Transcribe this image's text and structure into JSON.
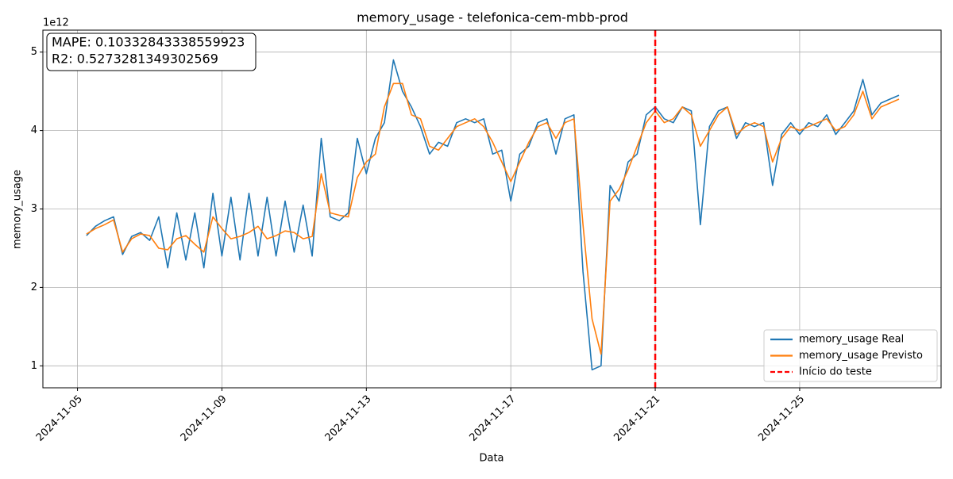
{
  "chart_data": {
    "type": "line",
    "title": "memory_usage - telefonica-cem-mbb-prod",
    "x_label": "Data",
    "y_label": "memory_usage",
    "y_offset_label": "1e12",
    "textbox": [
      "MAPE: 0.10332843338559923",
      "R2: 0.5273281349302569"
    ],
    "grid": true,
    "legend": "lower right",
    "xlim": [
      "2024-11-04 01:00",
      "2024-11-28 22:00"
    ],
    "xticks": [
      "2024-11-05",
      "2024-11-09",
      "2024-11-13",
      "2024-11-17",
      "2024-11-21",
      "2024-11-25"
    ],
    "ylim": [
      0.72,
      5.28
    ],
    "yticks": [
      1,
      2,
      3,
      4,
      5
    ],
    "vline": {
      "x": "2024-11-21",
      "label": "Início do teste",
      "color": "#ff0000"
    },
    "x": [
      "2024-11-05 06:00",
      "2024-11-05 12:00",
      "2024-11-05 18:00",
      "2024-11-06 00:00",
      "2024-11-06 06:00",
      "2024-11-06 12:00",
      "2024-11-06 18:00",
      "2024-11-07 00:00",
      "2024-11-07 06:00",
      "2024-11-07 12:00",
      "2024-11-07 18:00",
      "2024-11-08 00:00",
      "2024-11-08 06:00",
      "2024-11-08 12:00",
      "2024-11-08 18:00",
      "2024-11-09 00:00",
      "2024-11-09 06:00",
      "2024-11-09 12:00",
      "2024-11-09 18:00",
      "2024-11-10 00:00",
      "2024-11-10 06:00",
      "2024-11-10 12:00",
      "2024-11-10 18:00",
      "2024-11-11 00:00",
      "2024-11-11 06:00",
      "2024-11-11 12:00",
      "2024-11-11 18:00",
      "2024-11-12 00:00",
      "2024-11-12 06:00",
      "2024-11-12 12:00",
      "2024-11-12 18:00",
      "2024-11-13 00:00",
      "2024-11-13 06:00",
      "2024-11-13 12:00",
      "2024-11-13 18:00",
      "2024-11-14 00:00",
      "2024-11-14 06:00",
      "2024-11-14 12:00",
      "2024-11-14 18:00",
      "2024-11-15 00:00",
      "2024-11-15 06:00",
      "2024-11-15 12:00",
      "2024-11-15 18:00",
      "2024-11-16 00:00",
      "2024-11-16 06:00",
      "2024-11-16 12:00",
      "2024-11-16 18:00",
      "2024-11-17 00:00",
      "2024-11-17 06:00",
      "2024-11-17 12:00",
      "2024-11-17 18:00",
      "2024-11-18 00:00",
      "2024-11-18 06:00",
      "2024-11-18 12:00",
      "2024-11-18 18:00",
      "2024-11-19 00:00",
      "2024-11-19 06:00",
      "2024-11-19 12:00",
      "2024-11-19 18:00",
      "2024-11-20 00:00",
      "2024-11-20 06:00",
      "2024-11-20 12:00",
      "2024-11-20 18:00",
      "2024-11-21 00:00",
      "2024-11-21 06:00",
      "2024-11-21 12:00",
      "2024-11-21 18:00",
      "2024-11-22 00:00",
      "2024-11-22 06:00",
      "2024-11-22 12:00",
      "2024-11-22 18:00",
      "2024-11-23 00:00",
      "2024-11-23 06:00",
      "2024-11-23 12:00",
      "2024-11-23 18:00",
      "2024-11-24 00:00",
      "2024-11-24 06:00",
      "2024-11-24 12:00",
      "2024-11-24 18:00",
      "2024-11-25 00:00",
      "2024-11-25 06:00",
      "2024-11-25 12:00",
      "2024-11-25 18:00",
      "2024-11-26 00:00",
      "2024-11-26 06:00",
      "2024-11-26 12:00",
      "2024-11-26 18:00",
      "2024-11-27 00:00",
      "2024-11-27 06:00",
      "2024-11-27 12:00",
      "2024-11-27 18:00"
    ],
    "series": [
      {
        "name": "memory_usage Real",
        "color": "#1f77b4",
        "values": [
          2.66,
          2.78,
          2.85,
          2.9,
          2.42,
          2.65,
          2.7,
          2.6,
          2.9,
          2.25,
          2.95,
          2.35,
          2.95,
          2.25,
          3.2,
          2.4,
          3.15,
          2.35,
          3.2,
          2.4,
          3.15,
          2.4,
          3.1,
          2.45,
          3.05,
          2.4,
          3.9,
          2.9,
          2.85,
          2.95,
          3.9,
          3.45,
          3.9,
          4.1,
          4.9,
          4.5,
          4.3,
          4.05,
          3.7,
          3.85,
          3.8,
          4.1,
          4.15,
          4.1,
          4.15,
          3.7,
          3.75,
          3.1,
          3.7,
          3.8,
          4.1,
          4.15,
          3.7,
          4.15,
          4.2,
          2.2,
          0.95,
          1.0,
          3.3,
          3.1,
          3.6,
          3.7,
          4.2,
          4.3,
          4.15,
          4.1,
          4.3,
          4.25,
          2.8,
          4.05,
          4.25,
          4.3,
          3.9,
          4.1,
          4.05,
          4.1,
          3.3,
          3.95,
          4.1,
          3.95,
          4.1,
          4.05,
          4.2,
          3.95,
          4.1,
          4.25,
          4.65,
          4.2,
          4.35,
          4.4,
          4.45
        ]
      },
      {
        "name": "memory_usage Previsto",
        "color": "#ff7f0e",
        "values": [
          2.68,
          2.75,
          2.8,
          2.86,
          2.45,
          2.62,
          2.68,
          2.66,
          2.5,
          2.48,
          2.62,
          2.66,
          2.55,
          2.45,
          2.9,
          2.75,
          2.62,
          2.65,
          2.7,
          2.78,
          2.62,
          2.66,
          2.72,
          2.7,
          2.62,
          2.65,
          3.45,
          2.95,
          2.92,
          2.9,
          3.4,
          3.6,
          3.7,
          4.3,
          4.6,
          4.6,
          4.2,
          4.15,
          3.8,
          3.75,
          3.9,
          4.05,
          4.1,
          4.15,
          4.05,
          3.85,
          3.6,
          3.35,
          3.6,
          3.85,
          4.05,
          4.1,
          3.9,
          4.1,
          4.15,
          2.8,
          1.6,
          1.15,
          3.1,
          3.25,
          3.5,
          3.8,
          4.1,
          4.25,
          4.1,
          4.15,
          4.3,
          4.2,
          3.8,
          4.0,
          4.2,
          4.3,
          3.95,
          4.05,
          4.1,
          4.05,
          3.6,
          3.9,
          4.05,
          4.0,
          4.05,
          4.1,
          4.15,
          4.0,
          4.05,
          4.2,
          4.5,
          4.15,
          4.3,
          4.35,
          4.4
        ]
      }
    ]
  }
}
